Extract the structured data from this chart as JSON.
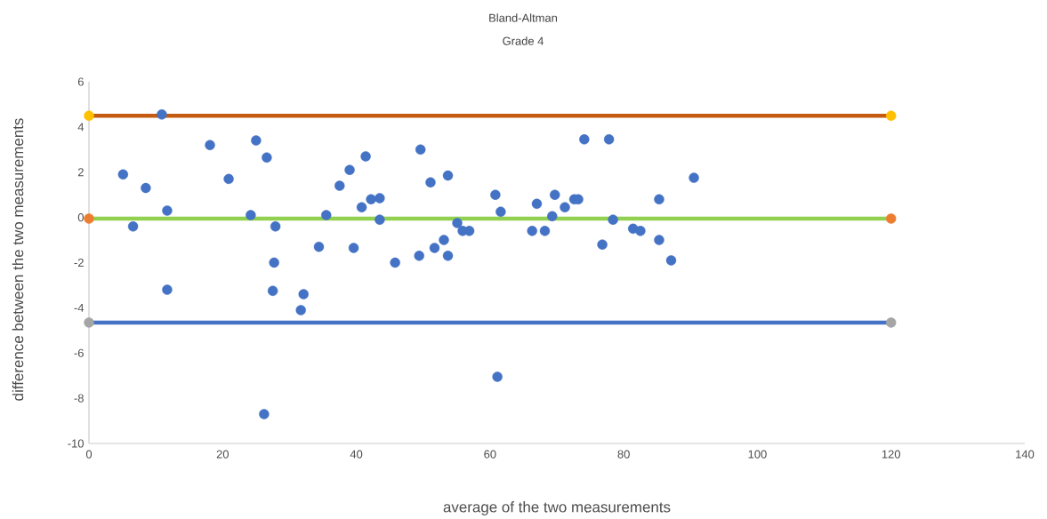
{
  "chart_data": {
    "type": "scatter",
    "title": "Bland-Altman",
    "subtitle": "Grade 4",
    "xlabel": "average of the two  measurements",
    "ylabel": "difference between  the two measurements",
    "xlim": [
      0,
      140
    ],
    "ylim": [
      -10,
      6
    ],
    "xticks": [
      0,
      20,
      40,
      60,
      80,
      100,
      120,
      140
    ],
    "yticks": [
      -10,
      -8,
      -6,
      -4,
      -2,
      0,
      2,
      4,
      6
    ],
    "grid": false,
    "marker": "circle",
    "series": [
      {
        "type": "line",
        "marker": "none",
        "color": "#c55a11",
        "x": [
          0,
          120
        ],
        "values": [
          4.5,
          4.5
        ]
      },
      {
        "type": "line",
        "marker": "none",
        "color": "#92d050",
        "x": [
          0,
          120
        ],
        "values": [
          -0.05,
          -0.05
        ]
      },
      {
        "type": "line",
        "marker": "none",
        "color": "#4472c4",
        "x": [
          0,
          120
        ],
        "values": [
          -4.65,
          -4.65
        ]
      },
      {
        "color": "#ffc000",
        "x": [
          0,
          120
        ],
        "values": [
          4.5,
          4.5
        ]
      },
      {
        "color": "#ed7d31",
        "x": [
          0,
          120
        ],
        "values": [
          -0.05,
          -0.05
        ]
      },
      {
        "color": "#a5a5a5",
        "x": [
          0,
          120
        ],
        "values": [
          -4.65,
          -4.65
        ]
      },
      {
        "color": "#4472c4",
        "x": [
          5.1,
          6.6,
          8.5,
          10.9,
          11.7,
          11.7,
          18.1,
          20.9,
          24.2,
          25.0,
          26.6,
          27.9,
          27.7,
          27.5,
          26.2,
          32.1,
          31.7,
          34.4,
          35.5,
          37.5,
          39.0,
          39.6,
          40.8,
          41.4,
          42.2,
          43.5,
          43.5,
          45.8,
          49.4,
          49.6,
          51.1,
          51.7,
          53.1,
          53.7,
          53.7,
          55.1,
          55.9,
          56.9,
          60.8,
          61.1,
          61.6,
          66.3,
          67.0,
          68.2,
          69.3,
          69.7,
          71.2,
          72.6,
          73.2,
          74.1,
          76.8,
          77.8,
          78.4,
          81.4,
          82.5,
          85.3,
          85.3,
          87.1,
          90.5
        ],
        "values": [
          1.9,
          -0.4,
          1.3,
          4.55,
          0.3,
          -3.2,
          3.2,
          1.7,
          0.1,
          3.4,
          2.65,
          -0.4,
          -2.0,
          -3.25,
          -8.7,
          -3.4,
          -4.1,
          -1.3,
          0.1,
          1.4,
          2.1,
          -1.35,
          0.45,
          2.7,
          0.8,
          0.85,
          -0.1,
          -2.0,
          -1.7,
          3.0,
          1.55,
          -1.35,
          -1.0,
          1.85,
          -1.7,
          -0.25,
          -0.6,
          -0.6,
          1.0,
          -7.05,
          0.25,
          -0.6,
          0.6,
          -0.6,
          0.05,
          1.0,
          0.45,
          0.8,
          0.8,
          3.45,
          -1.2,
          3.45,
          -0.1,
          -0.5,
          -0.6,
          0.8,
          -1.0,
          -1.9,
          1.75
        ]
      }
    ]
  }
}
